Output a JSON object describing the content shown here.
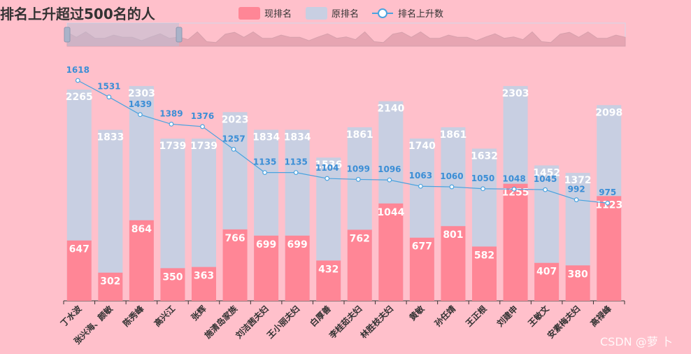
{
  "chart_data": {
    "type": "bar",
    "title": "排名上升超过500名的人",
    "categories": [
      "丁水波",
      "张兴海、颜敏",
      "陈秀峰",
      "高兴江",
      "张辉",
      "施清岛家族",
      "刘洁茜夫妇",
      "王小丽夫妇",
      "白厚善",
      "李桂茹夫妇",
      "林胜枝夫妇",
      "黄敏",
      "孙任靖",
      "王正根",
      "刘建申",
      "王敏文",
      "安素梅夫妇",
      "高禄峰"
    ],
    "series": [
      {
        "name": "现排名",
        "type": "bar",
        "color": "#ff8696",
        "values": [
          647,
          302,
          864,
          350,
          363,
          766,
          699,
          699,
          432,
          762,
          1044,
          677,
          801,
          582,
          1255,
          407,
          380,
          1123
        ]
      },
      {
        "name": "原排名",
        "type": "bar",
        "color": "#c8cfe2",
        "values": [
          2265,
          1833,
          2303,
          1739,
          1739,
          2023,
          1834,
          1834,
          1536,
          1861,
          2140,
          1740,
          1861,
          1632,
          2303,
          1452,
          1372,
          2098
        ]
      },
      {
        "name": "排名上升数",
        "type": "line",
        "color": "#4aa3df",
        "values": [
          1618,
          1531,
          1439,
          1389,
          1376,
          1257,
          1135,
          1135,
          1104,
          1099,
          1096,
          1063,
          1060,
          1050,
          1048,
          1045,
          992,
          975
        ]
      }
    ],
    "legend": {
      "position": "top-center",
      "items": [
        "现排名",
        "原排名",
        "排名上升数"
      ]
    },
    "has_datazoom_slider": true,
    "watermark": "CSDN @萝 卜"
  }
}
